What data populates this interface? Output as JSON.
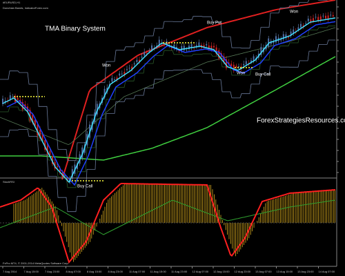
{
  "header": {
    "symbol": "#EURUSD,H1",
    "subtitle": "Donchian Bands, IndicatorForex.com",
    "oscillator": "StochRSI"
  },
  "annotations": {
    "title": "TMA Binary System",
    "buy_put": "Buy Put",
    "buy_call_1": "Buy Call",
    "buy_call_2": "Buy Call",
    "won_1": "Won",
    "won_2": "Won",
    "won_3": "Won",
    "watermark": "ForexStrategiesResources.com"
  },
  "footer": "FxPro MT4, © 2001-2014 MetaQuotes Software Corp.",
  "x_labels": [
    "7 Aug 2014",
    "7 Aug 15:00",
    "7 Aug 23:00",
    "8 Aug 07:00",
    "8 Aug 15:00",
    "8 Aug 23:00",
    "11 Aug 07:00",
    "11 Aug 15:00",
    "11 Aug 23:00",
    "12 Aug 07:00",
    "12 Aug 15:00",
    "12 Aug 23:00",
    "13 Aug 07:00",
    "13 Aug 15:00",
    "13 Aug 23:00",
    "14 Aug 07:00"
  ]
}
